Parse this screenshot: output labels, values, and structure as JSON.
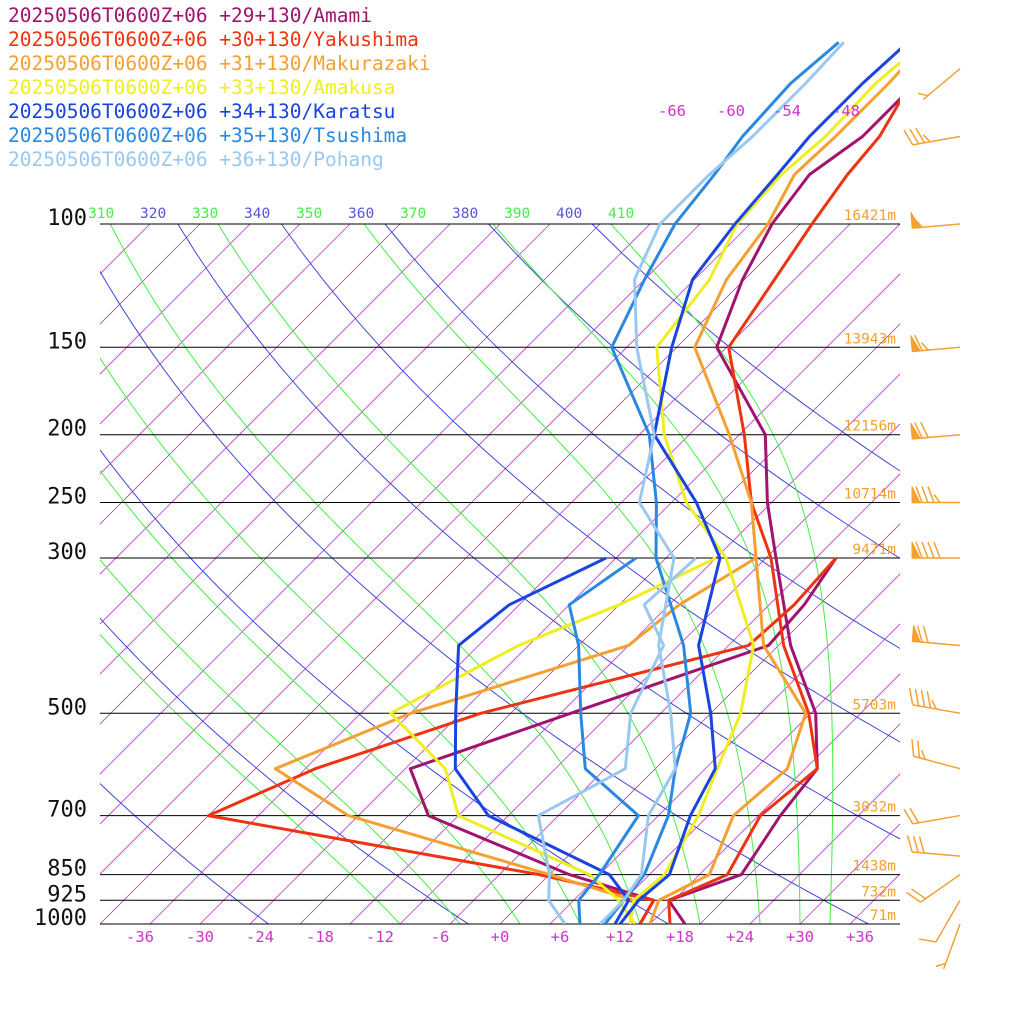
{
  "chart_data": {
    "type": "line",
    "title": "",
    "xlabel": "",
    "ylabel": "",
    "xlim": [
      -40,
      40
    ],
    "ylim": [
      1000,
      100
    ],
    "y_scale": "log",
    "pressure_levels": [
      {
        "p": 100,
        "label": "100",
        "height": "16421m"
      },
      {
        "p": 150,
        "label": "150",
        "height": "13943m"
      },
      {
        "p": 200,
        "label": "200",
        "height": "12156m"
      },
      {
        "p": 250,
        "label": "250",
        "height": "10714m"
      },
      {
        "p": 300,
        "label": "300",
        "height": "9471m"
      },
      {
        "p": 500,
        "label": "500",
        "height": "5703m"
      },
      {
        "p": 700,
        "label": "700",
        "height": "3032m"
      },
      {
        "p": 850,
        "label": "850",
        "height": "1438m"
      },
      {
        "p": 925,
        "label": "925",
        "height": "732m"
      },
      {
        "p": 1000,
        "label": "1000",
        "height": "71m"
      }
    ],
    "x_ticks": [
      "-36",
      "-30",
      "-24",
      "-18",
      "-12",
      "-6",
      "+0",
      "+6",
      "+12",
      "+18",
      "+24",
      "+30",
      "+36"
    ],
    "x_tick_values": [
      -36,
      -30,
      -24,
      -18,
      -12,
      -6,
      0,
      6,
      12,
      18,
      24,
      30,
      36
    ],
    "isotherm_top_labels": [
      "-66",
      "-60",
      "-54",
      "-48"
    ],
    "theta_labels": [
      {
        "text": "310",
        "color": "#44ee44"
      },
      {
        "text": "320",
        "color": "#5555dd"
      },
      {
        "text": "330",
        "color": "#44ee44"
      },
      {
        "text": "340",
        "color": "#5555dd"
      },
      {
        "text": "350",
        "color": "#44ee44"
      },
      {
        "text": "360",
        "color": "#5555dd"
      },
      {
        "text": "370",
        "color": "#44ee44"
      },
      {
        "text": "380",
        "color": "#5555dd"
      },
      {
        "text": "390",
        "color": "#44ee44"
      },
      {
        "text": "400",
        "color": "#5555dd"
      },
      {
        "text": "410",
        "color": "#44ee44"
      }
    ],
    "colors": {
      "isotherm": "#cc33cc",
      "dry_adiabat": "#4444dd",
      "moist_adiabat": "#44ee44",
      "pressure_line": "#000000",
      "height_label": "#f5a030",
      "tick_label": "#cc33cc",
      "wind_barb": "#f5a030"
    },
    "series": [
      {
        "name": "20250506T0600Z+06 +29+130/Amami",
        "color": "#a0136e",
        "temperature": [
          [
            1000,
            18.5
          ],
          [
            925,
            14.5
          ],
          [
            850,
            19.2
          ],
          [
            700,
            17.2
          ],
          [
            600,
            16.2
          ],
          [
            500,
            10.5
          ],
          [
            400,
            1.2
          ],
          [
            300,
            -9
          ],
          [
            250,
            -15.4
          ],
          [
            200,
            -22.4
          ],
          [
            150,
            -36
          ],
          [
            120,
            -40.2
          ],
          [
            100,
            -42.8
          ],
          [
            85,
            -44
          ],
          [
            75,
            -42.5
          ],
          [
            63,
            -42.5
          ],
          [
            55,
            -44.3
          ]
        ],
        "dewpoint": [
          [
            1000,
            14
          ],
          [
            925,
            13
          ],
          [
            850,
            2
          ],
          [
            700,
            -18
          ],
          [
            600,
            -24.5
          ],
          [
            500,
            -14
          ],
          [
            400,
            -1
          ],
          [
            350,
            -1.5
          ],
          [
            300,
            -3
          ]
        ]
      },
      {
        "name": "20250506T0600Z+06 +30+130/Yakushima",
        "color": "#ee3311",
        "temperature": [
          [
            1000,
            17
          ],
          [
            925,
            14.5
          ],
          [
            850,
            17.8
          ],
          [
            700,
            15.2
          ],
          [
            600,
            16.2
          ],
          [
            500,
            9.8
          ],
          [
            400,
            0.5
          ],
          [
            300,
            -9.5
          ],
          [
            250,
            -17
          ],
          [
            200,
            -24.5
          ],
          [
            150,
            -34.8
          ],
          [
            120,
            -37
          ],
          [
            100,
            -38.8
          ],
          [
            85,
            -40.2
          ],
          [
            75,
            -40.8
          ],
          [
            63,
            -43
          ],
          [
            55,
            -45.3
          ]
        ],
        "dewpoint": [
          [
            1000,
            14
          ],
          [
            925,
            13
          ],
          [
            850,
            -1
          ],
          [
            700,
            -40
          ],
          [
            600,
            -34
          ],
          [
            500,
            -23
          ],
          [
            400,
            -3
          ],
          [
            350,
            -2.5
          ],
          [
            300,
            -3
          ]
        ]
      },
      {
        "name": "20250506T0600Z+06 +31+130/Makurazaki",
        "color": "#f5a030",
        "temperature": [
          [
            1000,
            15
          ],
          [
            925,
            13.5
          ],
          [
            850,
            16
          ],
          [
            700,
            12.5
          ],
          [
            600,
            13.2
          ],
          [
            500,
            9.5
          ],
          [
            400,
            -1.5
          ],
          [
            300,
            -11
          ],
          [
            250,
            -17
          ],
          [
            200,
            -26
          ],
          [
            150,
            -38.2
          ],
          [
            120,
            -41.8
          ],
          [
            100,
            -43.2
          ],
          [
            85,
            -45.5
          ],
          [
            75,
            -45.2
          ],
          [
            63,
            -45.2
          ],
          [
            55,
            -45.5
          ]
        ],
        "dewpoint": [
          [
            1000,
            13
          ],
          [
            925,
            11
          ],
          [
            850,
            0
          ],
          [
            700,
            -26
          ],
          [
            600,
            -38
          ],
          [
            500,
            -30
          ],
          [
            400,
            -15
          ],
          [
            350,
            -14
          ],
          [
            300,
            -11
          ]
        ]
      },
      {
        "name": "20250506T0600Z+06 +33+130/Amakusa",
        "color": "#eeee22",
        "temperature": [
          [
            1000,
            13
          ],
          [
            925,
            11
          ],
          [
            850,
            11.5
          ],
          [
            700,
            9
          ],
          [
            600,
            6.2
          ],
          [
            500,
            3
          ],
          [
            400,
            -2.5
          ],
          [
            300,
            -14
          ],
          [
            250,
            -23.5
          ],
          [
            200,
            -32.5
          ],
          [
            150,
            -42
          ],
          [
            120,
            -43.5
          ],
          [
            100,
            -46.3
          ],
          [
            85,
            -46.8
          ],
          [
            75,
            -46.2
          ],
          [
            63,
            -46.5
          ],
          [
            55,
            -45.8
          ]
        ],
        "dewpoint": [
          [
            1000,
            13.5
          ],
          [
            925,
            9.5
          ],
          [
            850,
            4
          ],
          [
            700,
            -15
          ],
          [
            600,
            -21
          ],
          [
            500,
            -32
          ],
          [
            400,
            -26
          ],
          [
            350,
            -20
          ],
          [
            300,
            -15
          ]
        ]
      },
      {
        "name": "20250506T0600Z+06 +34+130/Karatsu",
        "color": "#1a44e0",
        "temperature": [
          [
            1000,
            12
          ],
          [
            925,
            11.5
          ],
          [
            850,
            12
          ],
          [
            700,
            8.2
          ],
          [
            600,
            6
          ],
          [
            500,
            0
          ],
          [
            400,
            -8
          ],
          [
            300,
            -14.6
          ],
          [
            250,
            -22.5
          ],
          [
            200,
            -33.5
          ],
          [
            150,
            -40.5
          ],
          [
            120,
            -45.2
          ],
          [
            100,
            -46.5
          ],
          [
            85,
            -47.2
          ],
          [
            75,
            -47.8
          ],
          [
            63,
            -47.8
          ],
          [
            55,
            -47.4
          ]
        ],
        "dewpoint": [
          [
            1000,
            11.5
          ],
          [
            925,
            10.5
          ],
          [
            850,
            6
          ],
          [
            700,
            -12
          ],
          [
            600,
            -20
          ],
          [
            500,
            -25.5
          ],
          [
            400,
            -32
          ],
          [
            350,
            -31
          ],
          [
            300,
            -26
          ]
        ]
      },
      {
        "name": "20250506T0600Z+06 +35+130/Tsushima",
        "color": "#2a88e0",
        "temperature": [
          [
            1000,
            10.5
          ],
          [
            925,
            10
          ],
          [
            850,
            9.5
          ],
          [
            700,
            6
          ],
          [
            600,
            2
          ],
          [
            500,
            -2
          ],
          [
            400,
            -9.5
          ],
          [
            300,
            -21
          ],
          [
            250,
            -26.5
          ],
          [
            200,
            -34
          ],
          [
            150,
            -46.5
          ],
          [
            120,
            -50
          ],
          [
            100,
            -52.5
          ],
          [
            85,
            -53.5
          ],
          [
            75,
            -54.5
          ],
          [
            63,
            -55
          ],
          [
            55,
            -54.3
          ]
        ],
        "dewpoint": [
          [
            1000,
            8
          ],
          [
            925,
            5.5
          ],
          [
            850,
            5
          ],
          [
            700,
            3
          ],
          [
            600,
            -7
          ],
          [
            500,
            -13
          ],
          [
            400,
            -20
          ],
          [
            350,
            -25
          ],
          [
            300,
            -23
          ]
        ]
      },
      {
        "name": "20250506T0600Z+06 +36+130/Pohang",
        "color": "#99c8f0",
        "temperature": [
          [
            1000,
            10
          ],
          [
            925,
            10
          ],
          [
            850,
            9.2
          ],
          [
            700,
            4
          ],
          [
            600,
            2
          ],
          [
            500,
            -4
          ],
          [
            400,
            -12
          ],
          [
            300,
            -19.2
          ],
          [
            250,
            -28.2
          ],
          [
            200,
            -33.5
          ],
          [
            150,
            -44
          ],
          [
            120,
            -51
          ],
          [
            100,
            -54
          ],
          [
            85,
            -54
          ],
          [
            75,
            -53.5
          ],
          [
            63,
            -53.5
          ],
          [
            55,
            -53.8
          ]
        ],
        "dewpoint": [
          [
            1000,
            6.5
          ],
          [
            925,
            2.5
          ],
          [
            850,
            0
          ],
          [
            700,
            -7
          ],
          [
            600,
            -3
          ],
          [
            500,
            -8
          ],
          [
            400,
            -11.5
          ],
          [
            350,
            -17.5
          ],
          [
            300,
            -17
          ]
        ]
      }
    ],
    "wind_barbs": [
      {
        "p": 60,
        "speed": 5,
        "dir": 230
      },
      {
        "p": 75,
        "speed": 35,
        "dir": 260
      },
      {
        "p": 100,
        "speed": 55,
        "dir": 265
      },
      {
        "p": 150,
        "speed": 65,
        "dir": 265
      },
      {
        "p": 200,
        "speed": 70,
        "dir": 265
      },
      {
        "p": 250,
        "speed": 85,
        "dir": 270
      },
      {
        "p": 300,
        "speed": 90,
        "dir": 270
      },
      {
        "p": 400,
        "speed": 70,
        "dir": 275
      },
      {
        "p": 500,
        "speed": 45,
        "dir": 280
      },
      {
        "p": 600,
        "speed": 25,
        "dir": 285
      },
      {
        "p": 700,
        "speed": 20,
        "dir": 260
      },
      {
        "p": 800,
        "speed": 30,
        "dir": 275
      },
      {
        "p": 850,
        "speed": 20,
        "dir": 235
      },
      {
        "p": 925,
        "speed": 10,
        "dir": 210
      },
      {
        "p": 1000,
        "speed": 5,
        "dir": 200
      }
    ]
  }
}
